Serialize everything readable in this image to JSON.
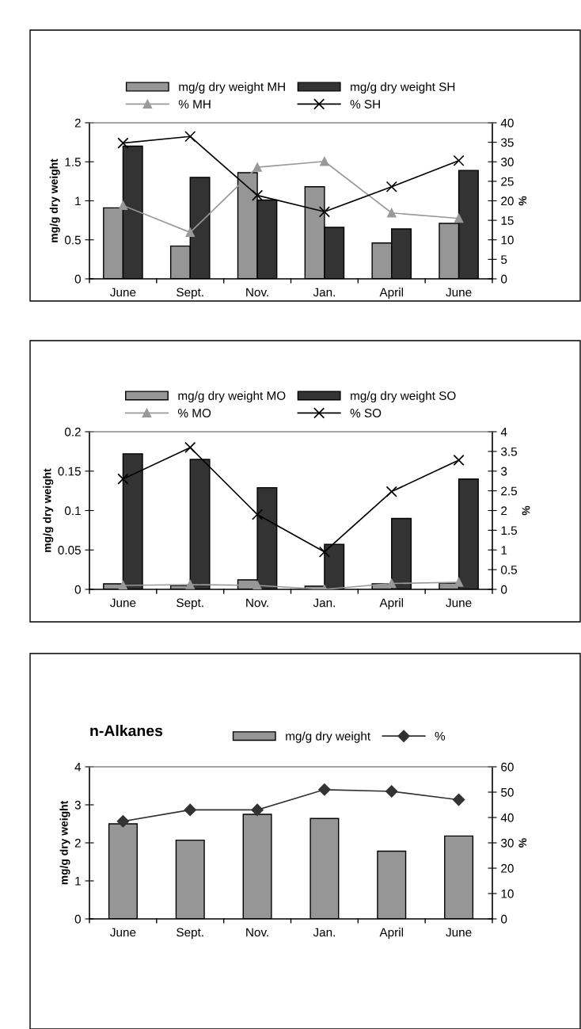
{
  "chart_data": [
    {
      "type": "bar",
      "categories": [
        "June",
        "Sept.",
        "Nov.",
        "Jan.",
        "April",
        "June"
      ],
      "ylabel": "mg/g dry weight",
      "y2label": "%",
      "ylim": [
        0,
        2
      ],
      "yticks": [
        0,
        0.5,
        1,
        1.5,
        2
      ],
      "y2lim": [
        0,
        40
      ],
      "y2ticks": [
        0,
        5,
        10,
        15,
        20,
        25,
        30,
        35,
        40
      ],
      "legend": "top",
      "grid": false,
      "series": [
        {
          "name": "mg/g dry weight MH",
          "type": "bar",
          "color": "#969696",
          "values": [
            0.91,
            0.42,
            1.36,
            1.18,
            0.46,
            0.71
          ]
        },
        {
          "name": "% MH",
          "type": "line",
          "axis": "y2",
          "marker": "triangle",
          "color": "#999999",
          "values": [
            18.8,
            11.9,
            28.6,
            30.1,
            16.9,
            15.5
          ]
        },
        {
          "name": "mg/g dry weight SH",
          "type": "bar",
          "color": "#333333",
          "values": [
            1.7,
            1.3,
            1.01,
            0.66,
            0.64,
            1.39
          ]
        },
        {
          "name": "% SH",
          "type": "line",
          "axis": "y2",
          "marker": "cross",
          "color": "#000000",
          "values": [
            34.8,
            36.5,
            21.4,
            17.2,
            23.6,
            30.3
          ]
        }
      ]
    },
    {
      "type": "bar",
      "categories": [
        "June",
        "Sept.",
        "Nov.",
        "Jan.",
        "April",
        "June"
      ],
      "ylabel": "mg/g dry weight",
      "y2label": "%",
      "ylim": [
        0,
        0.2
      ],
      "yticks": [
        0,
        0.05,
        0.1,
        0.15,
        0.2
      ],
      "y2lim": [
        0,
        4
      ],
      "y2ticks": [
        0,
        0.5,
        1,
        1.5,
        2,
        2.5,
        3,
        3.5,
        4
      ],
      "legend": "top",
      "grid": false,
      "series": [
        {
          "name": "mg/g dry weight MO",
          "type": "bar",
          "color": "#969696",
          "values": [
            0.007,
            0.005,
            0.012,
            0.004,
            0.007,
            0.008
          ]
        },
        {
          "name": "% MO",
          "type": "line",
          "axis": "y2",
          "marker": "triangle",
          "color": "#999999",
          "values": [
            0.1,
            0.12,
            0.1,
            0.0,
            0.15,
            0.18
          ]
        },
        {
          "name": "mg/g dry weight SO",
          "type": "bar",
          "color": "#333333",
          "values": [
            0.172,
            0.165,
            0.129,
            0.057,
            0.09,
            0.14
          ]
        },
        {
          "name": "% SO",
          "type": "line",
          "axis": "y2",
          "marker": "cross",
          "color": "#000000",
          "values": [
            2.8,
            3.6,
            1.9,
            0.95,
            2.48,
            3.28
          ]
        }
      ]
    },
    {
      "type": "bar",
      "title": "n-Alkanes",
      "categories": [
        "June",
        "Sept.",
        "Nov.",
        "Jan.",
        "April",
        "June"
      ],
      "ylabel": "mg/g dry weight",
      "y2label": "%",
      "ylim": [
        0,
        4
      ],
      "yticks": [
        0,
        1,
        2,
        3,
        4
      ],
      "y2lim": [
        0,
        60
      ],
      "y2ticks": [
        0,
        10,
        20,
        30,
        40,
        50,
        60
      ],
      "legend": "top",
      "grid": false,
      "series": [
        {
          "name": "mg/g dry weight",
          "type": "bar",
          "color": "#969696",
          "values": [
            2.5,
            2.07,
            2.75,
            2.64,
            1.78,
            2.18
          ]
        },
        {
          "name": "%",
          "type": "line",
          "axis": "y2",
          "marker": "diamond",
          "color": "#333333",
          "values": [
            38.5,
            43,
            43,
            51,
            50.3,
            47
          ]
        }
      ]
    }
  ]
}
